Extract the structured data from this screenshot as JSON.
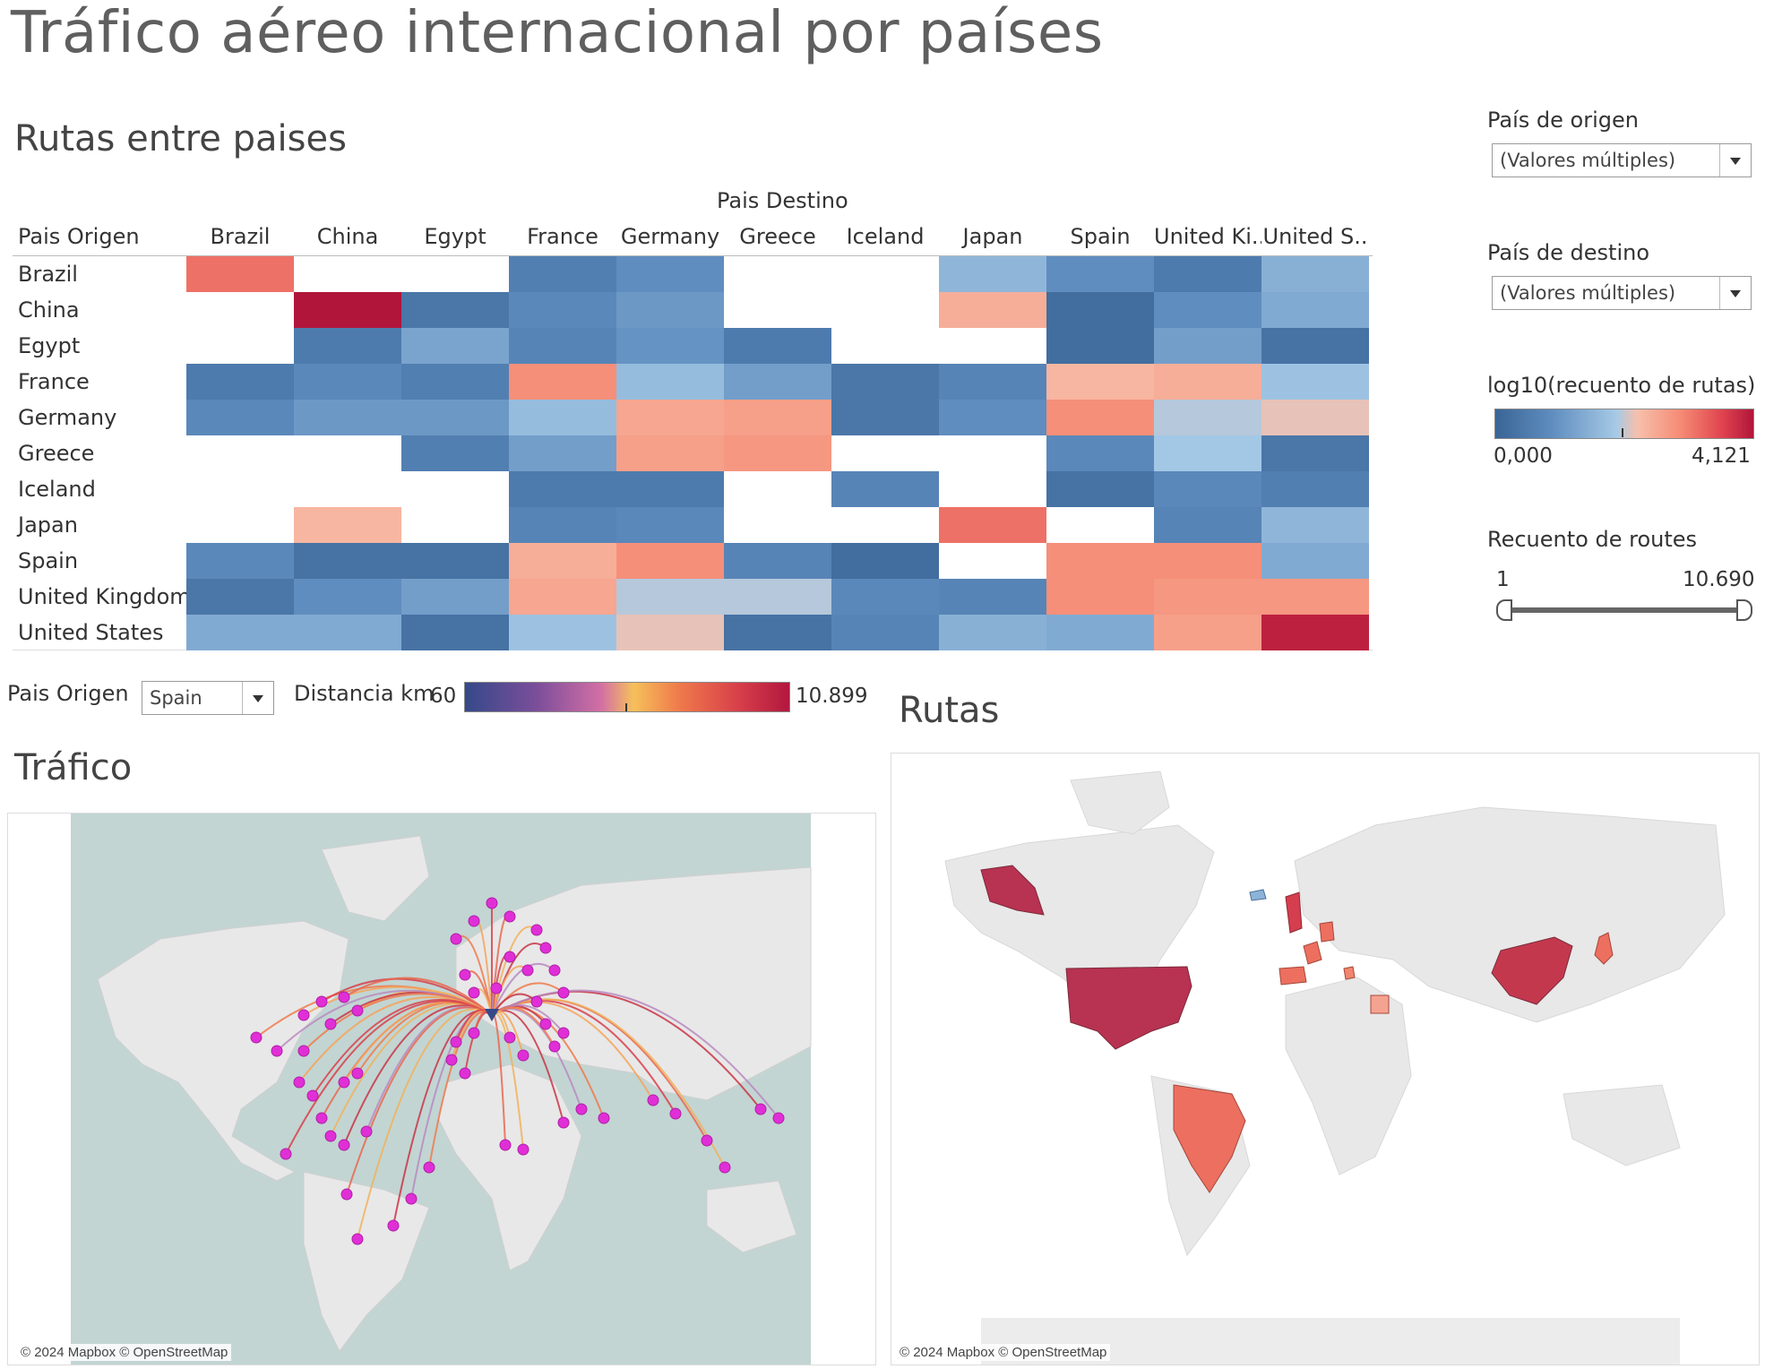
{
  "title": "Tráfico aéreo internacional por países",
  "heatmap": {
    "title": "Rutas entre paises",
    "dest_header": "Pais Destino",
    "origin_header": "Pais Origen",
    "columns": [
      "Brazil",
      "China",
      "Egypt",
      "France",
      "Germany",
      "Greece",
      "Iceland",
      "Japan",
      "Spain",
      "United Ki..",
      "United S.."
    ],
    "rows": [
      "Brazil",
      "China",
      "Egypt",
      "France",
      "Germany",
      "Greece",
      "Iceland",
      "Japan",
      "Spain",
      "United Kingdom",
      "United States"
    ],
    "log10_values": [
      [
        3.2,
        null,
        null,
        0.6,
        0.9,
        null,
        null,
        1.6,
        0.9,
        0.5,
        1.5
      ],
      [
        null,
        4.12,
        0.4,
        0.8,
        1.1,
        null,
        null,
        2.5,
        0.2,
        0.9,
        1.4
      ],
      [
        null,
        0.5,
        1.3,
        0.7,
        1.0,
        0.5,
        null,
        null,
        0.2,
        1.2,
        0.3
      ],
      [
        0.5,
        0.8,
        0.6,
        2.9,
        1.7,
        1.2,
        0.4,
        0.7,
        2.4,
        2.5,
        1.8
      ],
      [
        0.8,
        1.1,
        1.1,
        1.7,
        2.6,
        2.7,
        0.4,
        0.9,
        2.9,
        2.0,
        2.2
      ],
      [
        null,
        null,
        0.6,
        1.2,
        2.7,
        2.8,
        null,
        null,
        0.8,
        1.9,
        0.4
      ],
      [
        null,
        null,
        null,
        0.5,
        0.5,
        null,
        0.7,
        null,
        0.3,
        0.8,
        0.6
      ],
      [
        null,
        2.4,
        null,
        0.7,
        0.8,
        null,
        null,
        3.2,
        null,
        0.7,
        1.6
      ],
      [
        0.8,
        0.3,
        0.3,
        2.5,
        2.9,
        0.7,
        0.2,
        null,
        2.9,
        2.9,
        1.4
      ],
      [
        0.4,
        0.9,
        1.2,
        2.6,
        2.0,
        2.0,
        0.8,
        0.7,
        2.9,
        2.8,
        2.8
      ],
      [
        1.4,
        1.4,
        0.3,
        1.8,
        2.2,
        0.3,
        0.7,
        1.5,
        1.4,
        2.7,
        4.0
      ]
    ]
  },
  "filters": {
    "origin_label": "País de origen",
    "origin_value": "(Valores múltiples)",
    "dest_label": "País de destino",
    "dest_value": "(Valores múltiples)"
  },
  "legend": {
    "title": "log10(recuento de rutas)",
    "min": "0,000",
    "max": "4,121"
  },
  "range_filter": {
    "title": "Recuento de routes",
    "min": "1",
    "max": "10.690"
  },
  "traffic": {
    "title": "Tráfico",
    "origin_label": "Pais Origen",
    "origin_value": "Spain",
    "distance_label": "Distancia km",
    "distance_min": "60",
    "distance_max": "10.899",
    "credit": "© 2024 Mapbox © OpenStreetMap"
  },
  "routes_map": {
    "title": "Rutas",
    "credit": "© 2024 Mapbox © OpenStreetMap"
  },
  "colors": {
    "scale_low": "#3a6496",
    "scale_mid_low": "#a6cae6",
    "scale_mid_high": "#f7c0ac",
    "scale_high": "#b1153a",
    "ocean": "#c2d5d3",
    "land": "#e8e8e8",
    "destination_point": "#e02fd6"
  }
}
